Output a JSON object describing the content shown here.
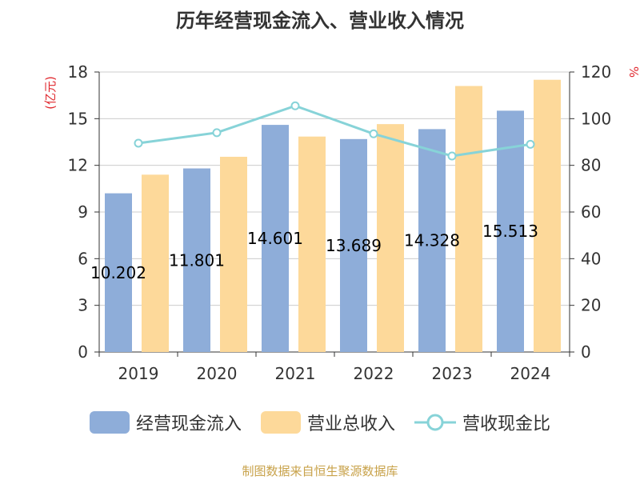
{
  "title": "历年经营现金流入、营业收入情况",
  "left_axis_unit": "(亿元)",
  "right_axis_unit": "%",
  "source_note": "制图数据来自恒生聚源数据库",
  "colors": {
    "cash_inflow": "#8eadd9",
    "revenue": "#fdd99a",
    "ratio": "#87d3d8"
  },
  "chart_data": {
    "type": "bar",
    "categories": [
      "2019",
      "2020",
      "2021",
      "2022",
      "2023",
      "2024"
    ],
    "series": [
      {
        "name": "经营现金流入",
        "type": "bar",
        "axis": "left",
        "values": [
          10.202,
          11.801,
          14.601,
          13.689,
          14.328,
          15.513
        ],
        "labels": [
          "10.202",
          "11.801",
          "14.601",
          "13.689",
          "14.328",
          "15.513"
        ]
      },
      {
        "name": "营业总收入",
        "type": "bar",
        "axis": "left",
        "values": [
          11.4,
          12.55,
          13.85,
          14.65,
          17.1,
          17.5
        ]
      },
      {
        "name": "营收现金比",
        "type": "line",
        "axis": "right",
        "values": [
          89.5,
          94,
          105.5,
          93.5,
          84,
          89
        ]
      }
    ],
    "left_axis": {
      "min": 0,
      "max": 18,
      "ticks": [
        "0",
        "3",
        "6",
        "9",
        "12",
        "15",
        "18"
      ]
    },
    "right_axis": {
      "min": 0,
      "max": 120,
      "ticks": [
        "0",
        "20",
        "40",
        "60",
        "80",
        "100",
        "120"
      ]
    },
    "grid": true,
    "legend_position": "bottom"
  }
}
